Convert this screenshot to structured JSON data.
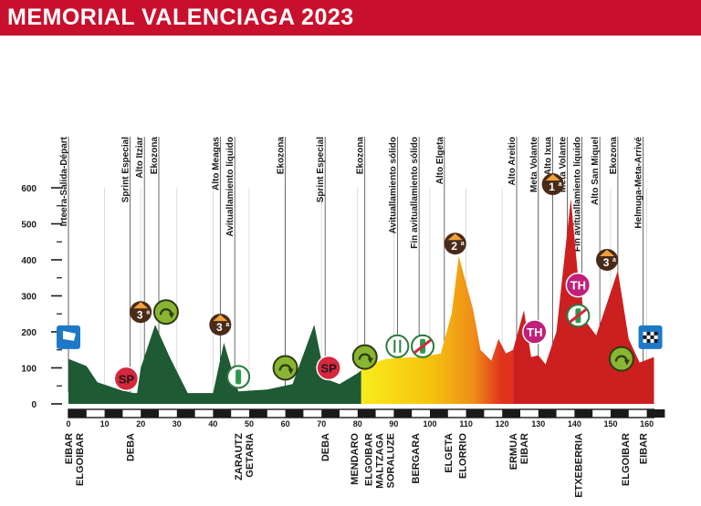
{
  "title": "MEMORIAL VALENCIAGA 2023",
  "chart_data": {
    "type": "area",
    "title": "MEMORIAL VALENCIAGA 2023",
    "xlabel": "",
    "ylabel": "",
    "xlim": [
      0,
      162
    ],
    "ylim": [
      0,
      600
    ],
    "x_ticks": [
      0,
      10,
      20,
      30,
      40,
      50,
      60,
      70,
      80,
      90,
      100,
      110,
      120,
      130,
      140,
      150,
      160
    ],
    "y_ticks": [
      0,
      100,
      200,
      300,
      400,
      500,
      600
    ],
    "grid": "vertical",
    "profile": {
      "x": [
        0,
        5,
        8,
        14,
        18,
        19,
        20,
        24,
        28,
        33,
        40,
        43,
        47,
        55,
        62,
        68,
        71,
        75,
        80,
        83,
        88,
        92,
        97,
        100,
        103,
        106,
        108,
        112,
        114,
        117,
        119,
        121,
        123,
        126,
        128,
        130,
        132,
        135,
        139,
        141,
        143,
        146,
        148,
        152,
        155,
        158,
        162
      ],
      "y": [
        125,
        105,
        60,
        40,
        30,
        30,
        100,
        220,
        130,
        30,
        30,
        170,
        35,
        40,
        55,
        220,
        70,
        55,
        85,
        110,
        125,
        128,
        130,
        135,
        140,
        250,
        410,
        260,
        150,
        120,
        180,
        140,
        150,
        260,
        130,
        135,
        110,
        200,
        570,
        350,
        230,
        190,
        250,
        370,
        180,
        115,
        130
      ]
    },
    "color_segments": [
      {
        "from": 0,
        "to": 81,
        "color": "#1e5a34"
      },
      {
        "from": 81,
        "to": 123,
        "color": "gradient-yellow-orange"
      },
      {
        "from": 123,
        "to": 162,
        "color": "#cc1f1f"
      }
    ],
    "passage_labels": [
      {
        "km": 0,
        "label": "Irteera-Salida-Départ"
      },
      {
        "km": 17,
        "label": "Sprint Especial"
      },
      {
        "km": 21,
        "label": "Alto Itziar"
      },
      {
        "km": 25,
        "label": "Ekozona"
      },
      {
        "km": 42,
        "label": "Alto Meagas"
      },
      {
        "km": 46,
        "label": "Avituallamiento líquido"
      },
      {
        "km": 60,
        "label": "Ekozona"
      },
      {
        "km": 71,
        "label": "Sprint Especial"
      },
      {
        "km": 82,
        "label": "Ekozona"
      },
      {
        "km": 91,
        "label": "Avituallamiento sólido"
      },
      {
        "km": 97,
        "label": "Fin avituallamiento sólido"
      },
      {
        "km": 104,
        "label": "Alto Elgeta"
      },
      {
        "km": 124,
        "label": "Alto Areitio"
      },
      {
        "km": 130,
        "label": "Meta Volante"
      },
      {
        "km": 134,
        "label": "Alto Ixua"
      },
      {
        "km": 138,
        "label": "Meta Volante"
      },
      {
        "km": 142,
        "label": "Fin avituallamiento líquido"
      },
      {
        "km": 147,
        "label": "Alto San Miquel"
      },
      {
        "km": 152,
        "label": "Ekozona"
      },
      {
        "km": 159,
        "label": "Helmuga-Meta-Arrivé"
      }
    ],
    "towns": [
      {
        "km": 0,
        "label": "EIBAR"
      },
      {
        "km": 3,
        "label": "ELGOIBAR"
      },
      {
        "km": 17,
        "label": "DEBA"
      },
      {
        "km": 47,
        "label": "ZARAUTZ"
      },
      {
        "km": 50,
        "label": "GETARIA"
      },
      {
        "km": 71,
        "label": "DEBA"
      },
      {
        "km": 79,
        "label": "MENDARO"
      },
      {
        "km": 83,
        "label": "ELGOIBAR"
      },
      {
        "km": 86,
        "label": "MALTZAGA"
      },
      {
        "km": 89,
        "label": "SORALUZE"
      },
      {
        "km": 96,
        "label": "BERGARA"
      },
      {
        "km": 105,
        "label": "ELGETA"
      },
      {
        "km": 109,
        "label": "ELORRIO"
      },
      {
        "km": 123,
        "label": "ERMUA"
      },
      {
        "km": 126,
        "label": "EIBAR"
      },
      {
        "km": 141,
        "label": "ETXEBERRIA"
      },
      {
        "km": 154,
        "label": "ELGOIBAR"
      },
      {
        "km": 159,
        "label": "EIBAR"
      }
    ],
    "markers": [
      {
        "km": 0,
        "alt": 185,
        "type": "start-flag"
      },
      {
        "km": 16,
        "alt": 70,
        "type": "sprint",
        "text": "SP"
      },
      {
        "km": 20,
        "alt": 255,
        "type": "climb",
        "category": "3",
        "sup": "a"
      },
      {
        "km": 27,
        "alt": 255,
        "type": "ekozona"
      },
      {
        "km": 42,
        "alt": 220,
        "type": "climb",
        "category": "3",
        "sup": "a"
      },
      {
        "km": 47,
        "alt": 75,
        "type": "feed-liquid"
      },
      {
        "km": 60,
        "alt": 100,
        "type": "ekozona"
      },
      {
        "km": 72,
        "alt": 100,
        "type": "sprint",
        "text": "SP"
      },
      {
        "km": 82,
        "alt": 130,
        "type": "ekozona"
      },
      {
        "km": 91,
        "alt": 160,
        "type": "feed-solid"
      },
      {
        "km": 98,
        "alt": 160,
        "type": "feed-end"
      },
      {
        "km": 107,
        "alt": 445,
        "type": "climb",
        "category": "2",
        "sup": "a"
      },
      {
        "km": 129,
        "alt": 200,
        "type": "intermediate",
        "text": "TH"
      },
      {
        "km": 134,
        "alt": 610,
        "type": "climb",
        "category": "1",
        "sup": "a"
      },
      {
        "km": 141,
        "alt": 330,
        "type": "intermediate",
        "text": "TH"
      },
      {
        "km": 141,
        "alt": 245,
        "type": "feed-end"
      },
      {
        "km": 149,
        "alt": 400,
        "type": "climb",
        "category": "3",
        "sup": "a"
      },
      {
        "km": 153,
        "alt": 125,
        "type": "ekozona"
      },
      {
        "km": 161,
        "alt": 185,
        "type": "finish-flag"
      }
    ]
  },
  "colors": {
    "title_bar": "#c8102e",
    "green": "#1e5a34",
    "yellow": "#f6d40a",
    "orange": "#ec7a18",
    "red": "#cc1f1f",
    "sprint": "#d7263d",
    "climb_dark": "#4a2a18",
    "climb_light": "#f0a33a",
    "eco": "#8ab533",
    "intermediate": "#c0207a",
    "flag_blue": "#1e78c8"
  }
}
